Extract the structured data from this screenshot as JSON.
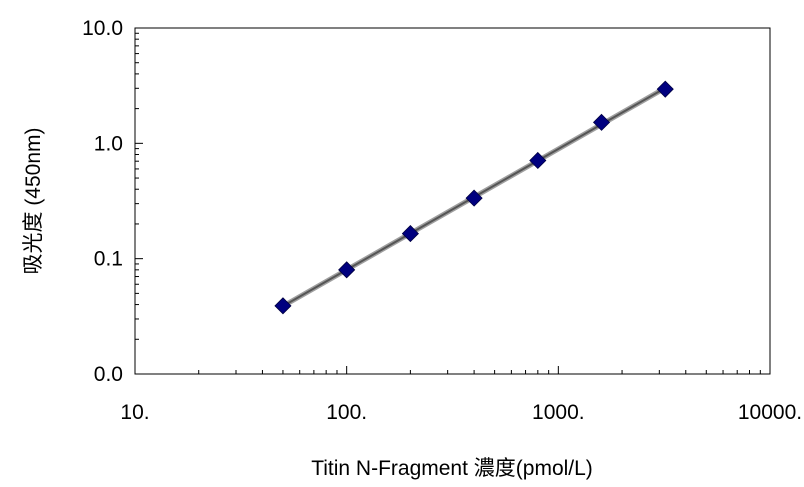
{
  "chart_data": {
    "type": "scatter",
    "title": "",
    "xlabel": "Titin N-Fragment 濃度(pmol/L)",
    "ylabel": "吸光度 (450nm)",
    "x_scale": "log",
    "y_scale": "log",
    "xlim": [
      10,
      10000
    ],
    "ylim": [
      0.01,
      10
    ],
    "x_ticks": [
      {
        "value": 10,
        "label": "10."
      },
      {
        "value": 100,
        "label": "100."
      },
      {
        "value": 1000,
        "label": "1000."
      },
      {
        "value": 10000,
        "label": "10000."
      }
    ],
    "y_ticks": [
      {
        "value": 0.01,
        "label": "0.0"
      },
      {
        "value": 0.1,
        "label": "0.1"
      },
      {
        "value": 1,
        "label": "1.0"
      },
      {
        "value": 10,
        "label": "10.0"
      }
    ],
    "grid": false,
    "legend": "none",
    "fit_line": true,
    "marker": "diamond",
    "marker_color": "#00007f",
    "line_color": "#555555",
    "series": [
      {
        "x": [
          50,
          100,
          200,
          400,
          800,
          1600,
          3200
        ],
        "y": [
          0.039,
          0.08,
          0.165,
          0.335,
          0.71,
          1.52,
          2.95
        ]
      }
    ]
  }
}
